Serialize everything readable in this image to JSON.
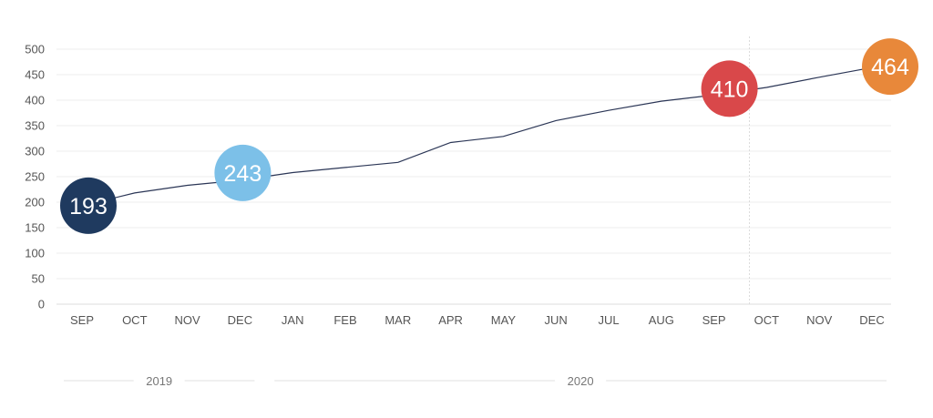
{
  "chart_data": {
    "type": "line",
    "categories": [
      "SEP",
      "OCT",
      "NOV",
      "DEC",
      "JAN",
      "FEB",
      "MAR",
      "APR",
      "MAY",
      "JUN",
      "JUL",
      "AUG",
      "SEP",
      "OCT",
      "NOV",
      "DEC"
    ],
    "values": [
      193,
      218,
      233,
      243,
      258,
      268,
      278,
      317,
      329,
      360,
      380,
      398,
      410,
      425,
      445,
      464
    ],
    "ylim": [
      0,
      500
    ],
    "yticks": [
      0,
      50,
      100,
      150,
      200,
      250,
      300,
      350,
      400,
      450,
      500
    ],
    "grid": true,
    "line_color": "#2b3656",
    "highlights": [
      {
        "index": 0,
        "label": "193",
        "color": "#1f3a5f"
      },
      {
        "index": 3,
        "label": "243",
        "color": "#7cc0e8"
      },
      {
        "index": 12,
        "label": "410",
        "color": "#d9484a"
      },
      {
        "index": 15,
        "label": "464",
        "color": "#e8883a"
      }
    ],
    "year_groups": [
      {
        "label": "2019",
        "start": 0,
        "end": 3
      },
      {
        "label": "2020",
        "start": 4,
        "end": 15
      }
    ]
  }
}
